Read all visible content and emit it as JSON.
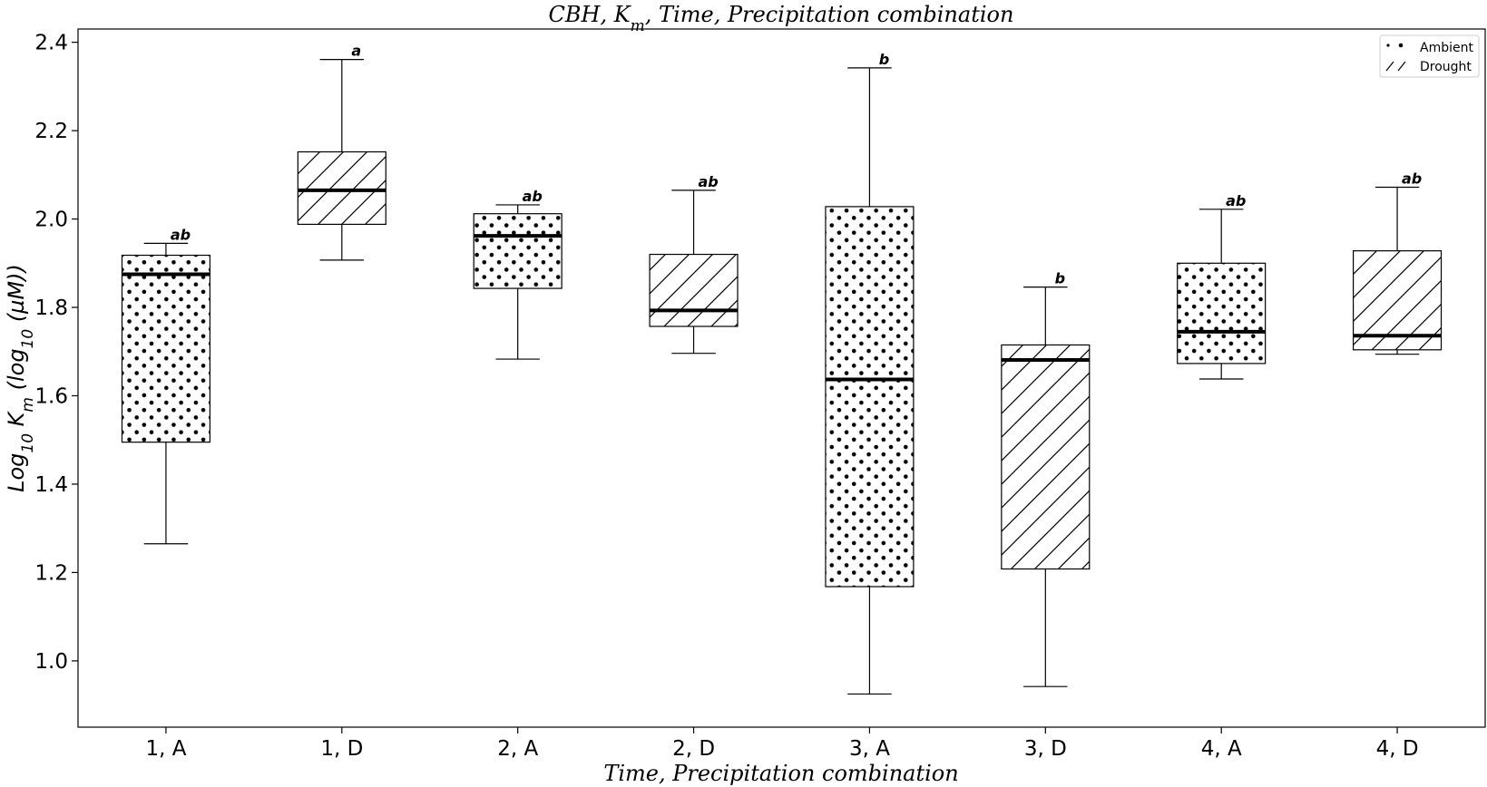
{
  "chart_data": {
    "type": "box",
    "title": "CBH, K_m, Time, Precipitation combination",
    "title_parts": [
      "CBH, K",
      "m",
      ", Time, Precipitation combination"
    ],
    "xlabel": "Time, Precipitation combination",
    "ylabel": "Log10 K_m (log10 (µM))",
    "ylabel_parts": [
      "Log",
      "10",
      " K",
      "m",
      " (log",
      "10",
      " (µM))"
    ],
    "ylim": [
      0.85,
      2.43
    ],
    "yticks": [
      1.0,
      1.2,
      1.4,
      1.6,
      1.8,
      2.0,
      2.2,
      2.4
    ],
    "ytick_labels": [
      "1.0",
      "1.2",
      "1.4",
      "1.6",
      "1.8",
      "2.0",
      "2.2",
      "2.4"
    ],
    "grid": false,
    "legend_position": "top-right",
    "legend": [
      {
        "label": "Ambient",
        "pattern": "dots"
      },
      {
        "label": "Drought",
        "pattern": "hatch"
      }
    ],
    "categories": [
      "1, A",
      "1, D",
      "2, A",
      "2, D",
      "3, A",
      "3, D",
      "4, A",
      "4, D"
    ],
    "boxes": [
      {
        "label": "1, A",
        "pattern": "dots",
        "whislo": 1.265,
        "q1": 1.495,
        "med": 1.875,
        "q3": 1.918,
        "whishi": 1.945,
        "sig": "ab"
      },
      {
        "label": "1, D",
        "pattern": "hatch",
        "whislo": 1.907,
        "q1": 1.988,
        "med": 2.065,
        "q3": 2.152,
        "whishi": 2.361,
        "sig": "a"
      },
      {
        "label": "2, A",
        "pattern": "dots",
        "whislo": 1.683,
        "q1": 1.843,
        "med": 1.962,
        "q3": 2.012,
        "whishi": 2.032,
        "sig": "ab"
      },
      {
        "label": "2, D",
        "pattern": "hatch",
        "whislo": 1.696,
        "q1": 1.757,
        "med": 1.793,
        "q3": 1.92,
        "whishi": 2.065,
        "sig": "ab"
      },
      {
        "label": "3, A",
        "pattern": "dots",
        "whislo": 0.925,
        "q1": 1.168,
        "med": 1.637,
        "q3": 2.028,
        "whishi": 2.342,
        "sig": "b"
      },
      {
        "label": "3, D",
        "pattern": "hatch",
        "whislo": 0.942,
        "q1": 1.208,
        "med": 1.681,
        "q3": 1.715,
        "whishi": 1.846,
        "sig": "b"
      },
      {
        "label": "4, A",
        "pattern": "dots",
        "whislo": 1.638,
        "q1": 1.673,
        "med": 1.745,
        "q3": 1.9,
        "whishi": 2.022,
        "sig": "ab"
      },
      {
        "label": "4, D",
        "pattern": "hatch",
        "whislo": 1.694,
        "q1": 1.704,
        "med": 1.736,
        "q3": 1.928,
        "whishi": 2.072,
        "sig": "ab"
      }
    ]
  }
}
